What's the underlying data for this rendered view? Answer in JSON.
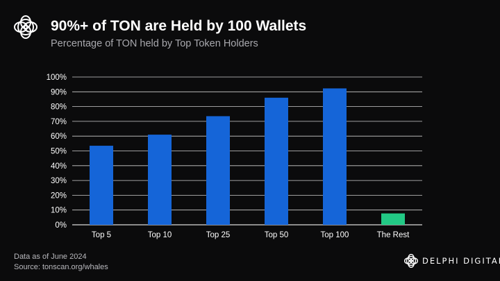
{
  "header": {
    "logo_icon": "delphi-flower-icon",
    "title": "90%+ of TON are Held by 100 Wallets",
    "subtitle": "Percentage of TON held by Top Token Holders"
  },
  "chart_data": {
    "type": "bar",
    "categories": [
      "Top 5",
      "Top 10",
      "Top 25",
      "Top 50",
      "Top 100",
      "The Rest"
    ],
    "values": [
      53.5,
      61,
      73.5,
      86,
      92.3,
      7.7
    ],
    "bar_colors": [
      "#1565d8",
      "#1565d8",
      "#1565d8",
      "#1565d8",
      "#1565d8",
      "#22c985"
    ],
    "ylim": [
      0,
      100
    ],
    "yticks": [
      "0%",
      "10%",
      "20%",
      "30%",
      "40%",
      "50%",
      "60%",
      "70%",
      "80%",
      "90%",
      "100%"
    ],
    "grid": true,
    "legend": "none",
    "xlabel": "",
    "ylabel": ""
  },
  "footer": {
    "note": "Data as of June 2024",
    "source": "Source: tonscan.org/whales"
  },
  "brand": {
    "icon": "delphi-flower-icon",
    "name": "DELPHI DIGITAL"
  }
}
